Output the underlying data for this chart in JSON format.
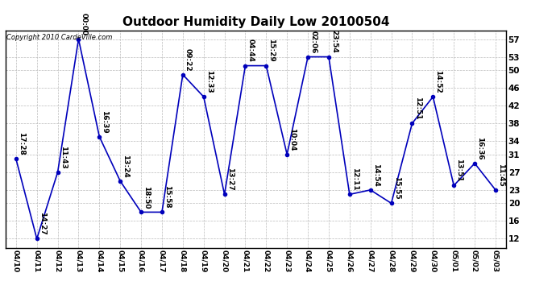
{
  "title": "Outdoor Humidity Daily Low 20100504",
  "copyright": "Copyright 2010 CardeVille.com",
  "x_labels": [
    "04/10",
    "04/11",
    "04/12",
    "04/13",
    "04/14",
    "04/15",
    "04/16",
    "04/17",
    "04/18",
    "04/19",
    "04/20",
    "04/21",
    "04/22",
    "04/23",
    "04/24",
    "04/25",
    "04/26",
    "04/27",
    "04/28",
    "04/29",
    "04/30",
    "05/01",
    "05/02",
    "05/03"
  ],
  "y_values": [
    30,
    12,
    27,
    57,
    35,
    25,
    18,
    18,
    49,
    44,
    22,
    51,
    51,
    31,
    53,
    53,
    22,
    23,
    20,
    38,
    44,
    24,
    29,
    23
  ],
  "annotations": [
    "17:28",
    "14:27",
    "11:43",
    "00:00",
    "16:39",
    "13:24",
    "18:50",
    "15:58",
    "09:22",
    "12:33",
    "13:27",
    "04:44",
    "15:29",
    "10:04",
    "02:06",
    "23:54",
    "12:11",
    "14:54",
    "15:55",
    "12:51",
    "14:52",
    "13:51",
    "16:36",
    "11:45"
  ],
  "line_color": "#0000bb",
  "marker_color": "#0000bb",
  "bg_color": "#ffffff",
  "grid_color": "#bbbbbb",
  "yticks": [
    12,
    16,
    20,
    23,
    27,
    31,
    34,
    38,
    42,
    46,
    50,
    53,
    57
  ],
  "ylim": [
    10,
    59
  ],
  "annotation_fontsize": 6.5,
  "title_fontsize": 11
}
